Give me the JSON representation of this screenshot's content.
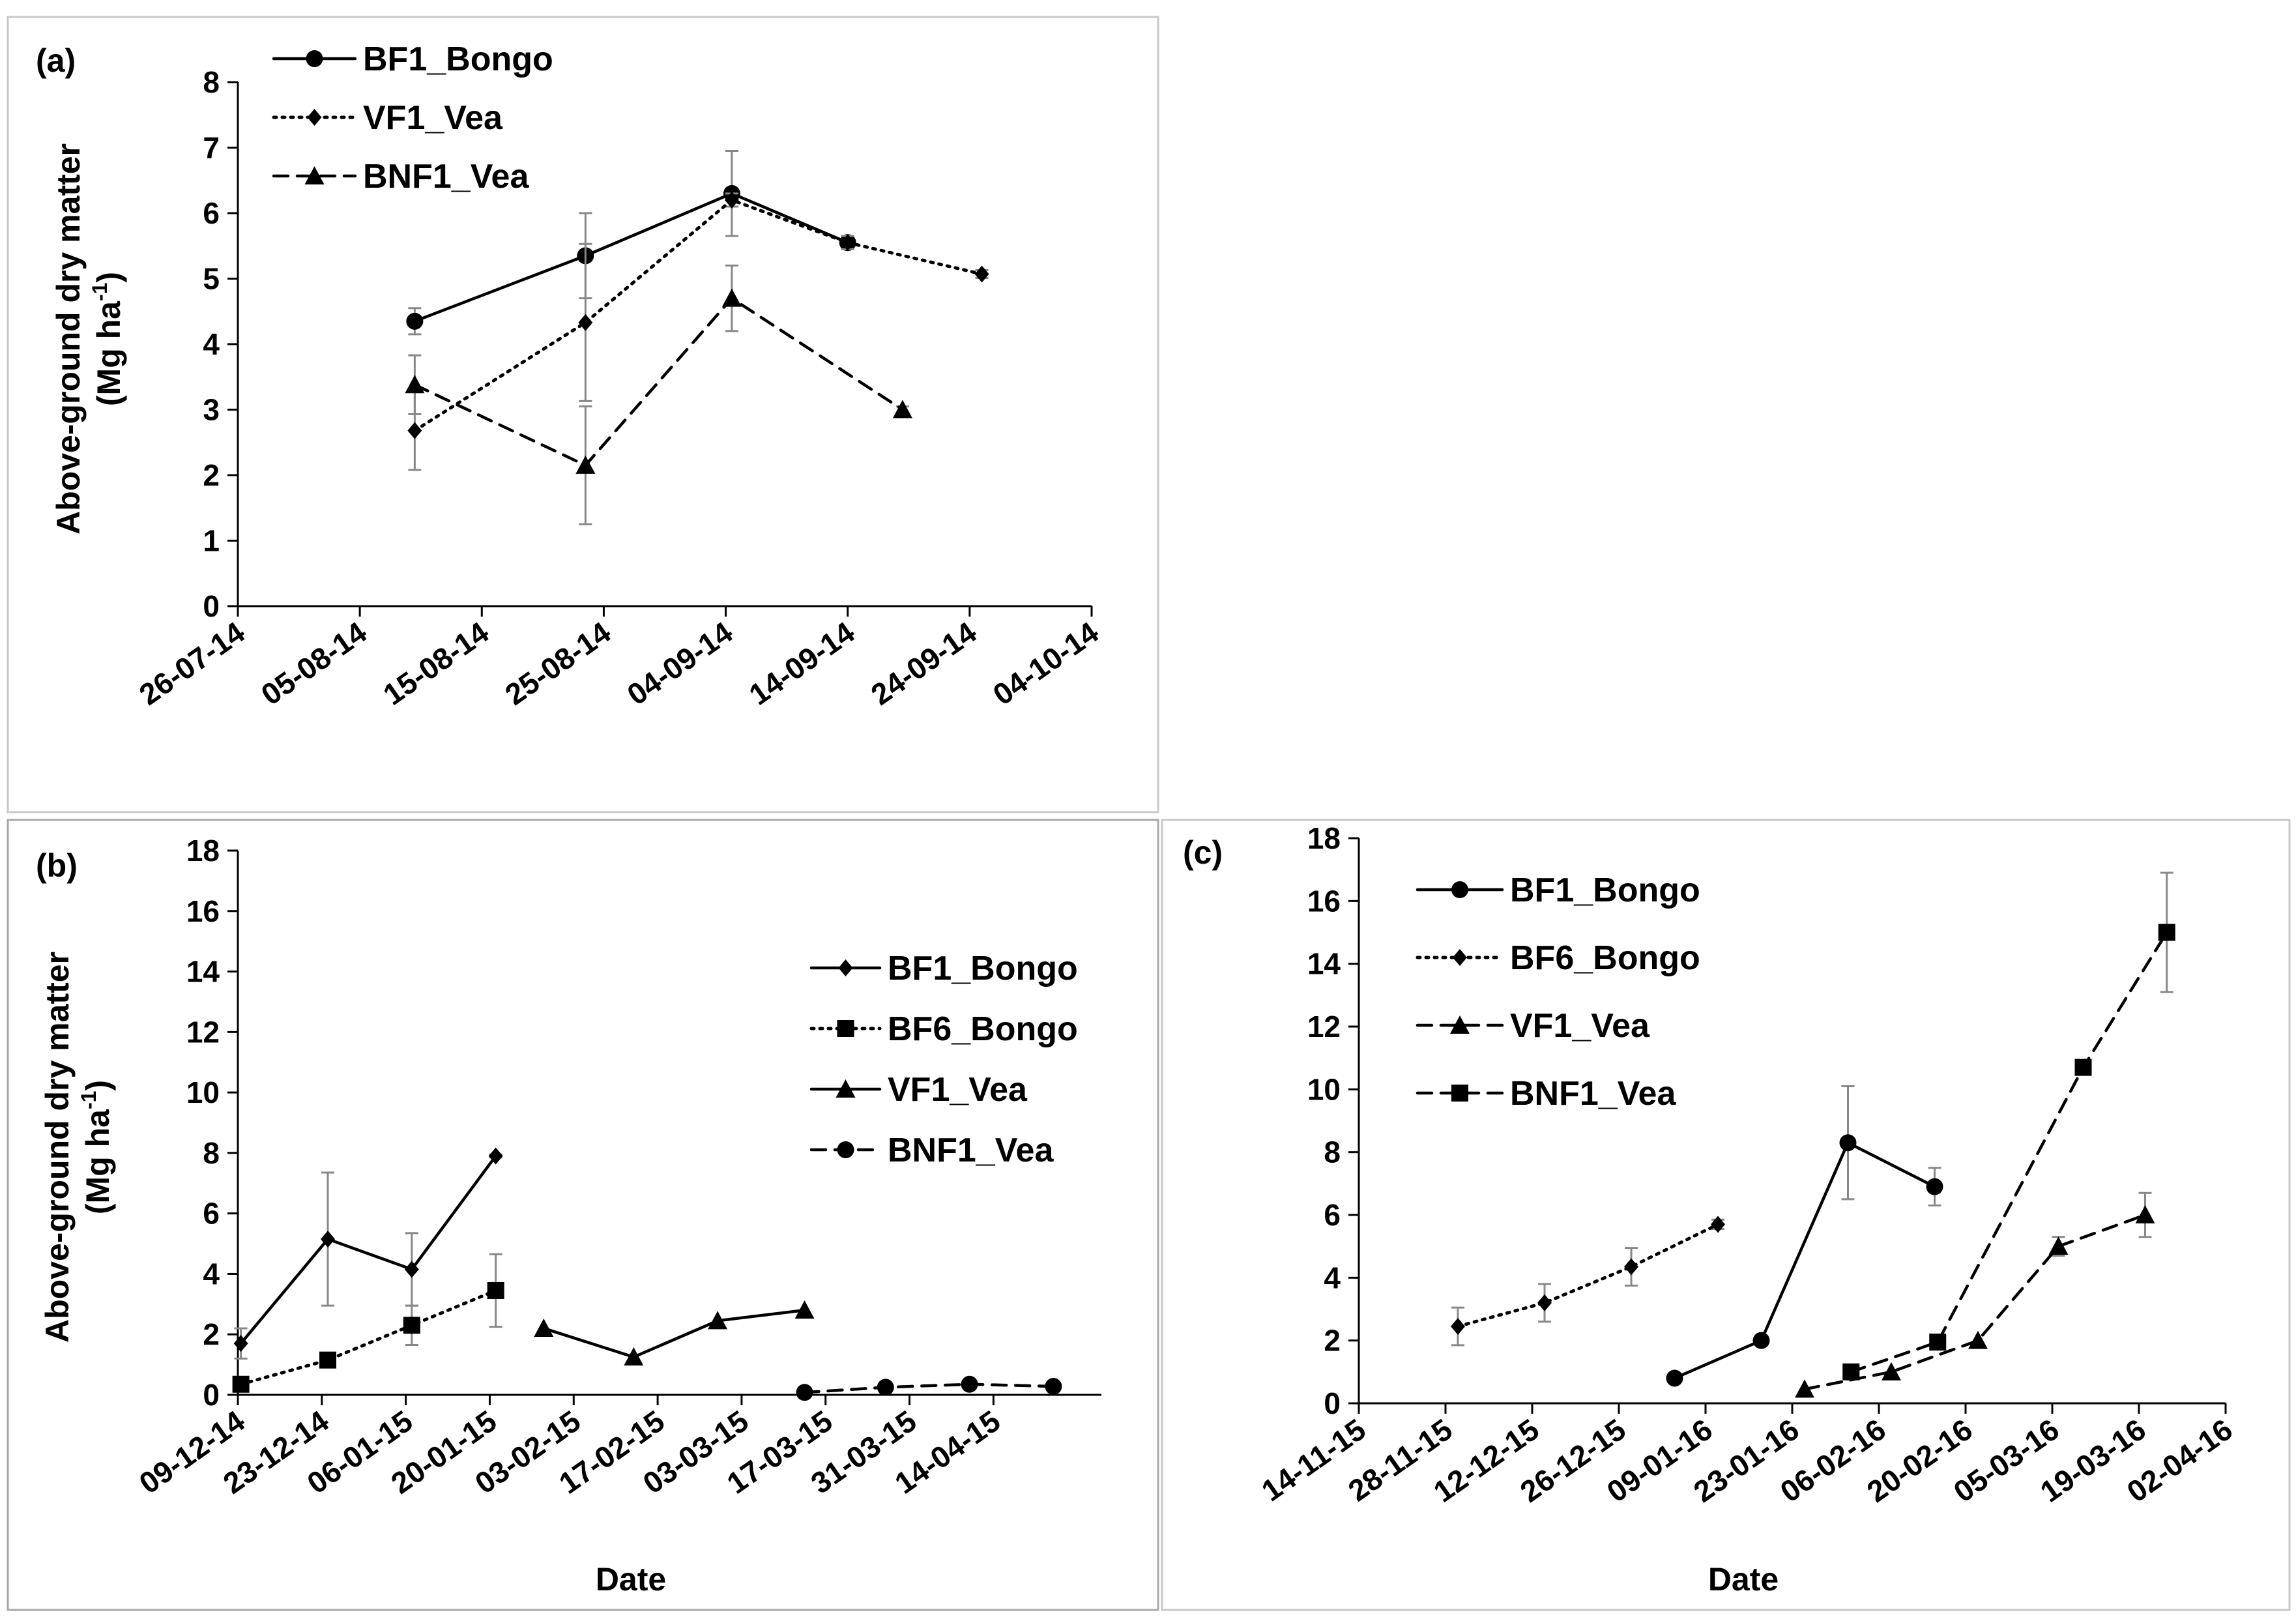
{
  "figure": {
    "ylabel_line1": "Above-ground dry matter",
    "ylabel_line2": "(Mg ha",
    "ylabel_sup": "-1",
    "ylabel_close": ")"
  },
  "chart_data": [
    {
      "panel": "(a)",
      "type": "line",
      "title": "",
      "xlabel": "",
      "ylabel": "Above-ground dry matter (Mg ha-1)",
      "ylim": [
        0,
        8
      ],
      "yticks": [
        "0",
        "1",
        "2",
        "3",
        "4",
        "5",
        "6",
        "7",
        "8"
      ],
      "xlim_days": [
        0,
        70
      ],
      "xticks": [
        {
          "label": "26-07-14",
          "day": 0
        },
        {
          "label": "05-08-14",
          "day": 10
        },
        {
          "label": "15-08-14",
          "day": 20
        },
        {
          "label": "25-08-14",
          "day": 30
        },
        {
          "label": "04-09-14",
          "day": 40
        },
        {
          "label": "14-09-14",
          "day": 50
        },
        {
          "label": "24-09-14",
          "day": 60
        },
        {
          "label": "04-10-14",
          "day": 70
        }
      ],
      "legend_position": "top-left",
      "series": [
        {
          "name": "BF1_Bongo",
          "style": "solid",
          "marker": "circle",
          "points": [
            {
              "day": 14.5,
              "y": 4.35,
              "err": 0.2
            },
            {
              "day": 28.5,
              "y": 5.35,
              "err": 0.65
            },
            {
              "day": 40.5,
              "y": 6.3,
              "err": 0.65
            },
            {
              "day": 50,
              "y": 5.55,
              "err": 0.1
            }
          ]
        },
        {
          "name": "VF1_Vea",
          "style": "dotted",
          "marker": "diamond",
          "points": [
            {
              "day": 14.5,
              "y": 2.68,
              "err": 0.6
            },
            {
              "day": 28.5,
              "y": 4.33,
              "err": 1.2
            },
            {
              "day": 40.5,
              "y": 6.2,
              "err": 0.1
            },
            {
              "day": 50,
              "y": 5.55,
              "err": 0.1
            },
            {
              "day": 61,
              "y": 5.07,
              "err": 0.06
            }
          ]
        },
        {
          "name": "BNF1_Vea",
          "style": "dashed",
          "marker": "triangle",
          "points": [
            {
              "day": 14.5,
              "y": 3.38,
              "err": 0.45
            },
            {
              "day": 28.5,
              "y": 2.15,
              "err": 0.9
            },
            {
              "day": 40.5,
              "y": 4.7,
              "err": 0.5
            },
            {
              "day": 54.5,
              "y": 3.0,
              "err": 0.05
            }
          ]
        }
      ]
    },
    {
      "panel": "(b)",
      "type": "line",
      "title": "",
      "xlabel": "Date",
      "ylabel": "Above-ground dry matter (Mg ha-1)",
      "ylim": [
        0,
        18
      ],
      "yticks": [
        "0",
        "2",
        "4",
        "6",
        "8",
        "10",
        "12",
        "14",
        "16",
        "18"
      ],
      "xlim_days": [
        0,
        144
      ],
      "xticks": [
        {
          "label": "09-12-14",
          "day": 0
        },
        {
          "label": "23-12-14",
          "day": 14
        },
        {
          "label": "06-01-15",
          "day": 28
        },
        {
          "label": "20-01-15",
          "day": 42
        },
        {
          "label": "03-02-15",
          "day": 56
        },
        {
          "label": "17-02-15",
          "day": 70
        },
        {
          "label": "03-03-15",
          "day": 84
        },
        {
          "label": "17-03-15",
          "day": 98
        },
        {
          "label": "31-03-15",
          "day": 112
        },
        {
          "label": "14-04-15",
          "day": 126
        }
      ],
      "legend_position": "right",
      "series": [
        {
          "name": "BF1_Bongo",
          "style": "solid",
          "marker": "diamond",
          "points": [
            {
              "day": 0.5,
              "y": 1.7,
              "err": 0.5
            },
            {
              "day": 15,
              "y": 5.15,
              "err": 2.2
            },
            {
              "day": 29,
              "y": 4.15,
              "err": 1.2
            },
            {
              "day": 43,
              "y": 7.9,
              "err": 0.05
            }
          ]
        },
        {
          "name": "BF6_Bongo",
          "style": "dotted",
          "marker": "square",
          "points": [
            {
              "day": 0.5,
              "y": 0.35,
              "err": 0.05
            },
            {
              "day": 15,
              "y": 1.15,
              "err": 0.05
            },
            {
              "day": 29,
              "y": 2.3,
              "err": 0.65
            },
            {
              "day": 43,
              "y": 3.45,
              "err": 1.2
            }
          ]
        },
        {
          "name": "VF1_Vea",
          "style": "solid",
          "marker": "triangle",
          "points": [
            {
              "day": 51,
              "y": 2.2,
              "err": 0
            },
            {
              "day": 66,
              "y": 1.25,
              "err": 0
            },
            {
              "day": 80,
              "y": 2.45,
              "err": 0
            },
            {
              "day": 94.5,
              "y": 2.8,
              "err": 0
            }
          ]
        },
        {
          "name": "BNF1_Vea",
          "style": "dashed",
          "marker": "circle",
          "points": [
            {
              "day": 94.5,
              "y": 0.08,
              "err": 0
            },
            {
              "day": 108,
              "y": 0.25,
              "err": 0
            },
            {
              "day": 122,
              "y": 0.35,
              "err": 0
            },
            {
              "day": 136,
              "y": 0.28,
              "err": 0
            }
          ]
        }
      ]
    },
    {
      "panel": "(c)",
      "type": "line",
      "title": "",
      "xlabel": "Date",
      "ylabel": "",
      "ylim": [
        0,
        18
      ],
      "yticks": [
        "0",
        "2",
        "4",
        "6",
        "8",
        "10",
        "12",
        "14",
        "16",
        "18"
      ],
      "xlim_days": [
        0,
        140
      ],
      "xticks": [
        {
          "label": "14-11-15",
          "day": 0
        },
        {
          "label": "28-11-15",
          "day": 14
        },
        {
          "label": "12-12-15",
          "day": 28
        },
        {
          "label": "26-12-15",
          "day": 42
        },
        {
          "label": "09-01-16",
          "day": 56
        },
        {
          "label": "23-01-16",
          "day": 70
        },
        {
          "label": "06-02-16",
          "day": 84
        },
        {
          "label": "20-02-16",
          "day": 98
        },
        {
          "label": "05-03-16",
          "day": 112
        },
        {
          "label": "19-03-16",
          "day": 126
        },
        {
          "label": "02-04-16",
          "day": 140
        }
      ],
      "legend_position": "top-left",
      "series": [
        {
          "name": "BF1_Bongo",
          "style": "solid",
          "marker": "circle",
          "points": [
            {
              "day": 51,
              "y": 0.8,
              "err": 0
            },
            {
              "day": 65,
              "y": 2.0,
              "err": 0
            },
            {
              "day": 79,
              "y": 8.3,
              "err": 1.8
            },
            {
              "day": 93,
              "y": 6.9,
              "err": 0.6
            }
          ]
        },
        {
          "name": "BF6_Bongo",
          "style": "dotted",
          "marker": "diamond",
          "points": [
            {
              "day": 16,
              "y": 2.45,
              "err": 0.6
            },
            {
              "day": 30,
              "y": 3.2,
              "err": 0.6
            },
            {
              "day": 44,
              "y": 4.35,
              "err": 0.6
            },
            {
              "day": 58,
              "y": 5.7,
              "err": 0.15
            }
          ]
        },
        {
          "name": "VF1_Vea",
          "style": "dashed",
          "marker": "triangle",
          "points": [
            {
              "day": 72,
              "y": 0.45,
              "err": 0
            },
            {
              "day": 86,
              "y": 1.0,
              "err": 0
            },
            {
              "day": 100,
              "y": 2.0,
              "err": 0
            },
            {
              "day": 113,
              "y": 5.0,
              "err": 0.3
            },
            {
              "day": 127,
              "y": 6.0,
              "err": 0.7
            }
          ]
        },
        {
          "name": "BNF1_Vea",
          "style": "dashed",
          "marker": "square",
          "points": [
            {
              "day": 79.5,
              "y": 1.0,
              "err": 0
            },
            {
              "day": 93.5,
              "y": 1.95,
              "err": 0
            },
            {
              "day": 117,
              "y": 10.7,
              "err": 0
            },
            {
              "day": 130.5,
              "y": 15.0,
              "err": 1.9
            }
          ]
        }
      ]
    }
  ]
}
